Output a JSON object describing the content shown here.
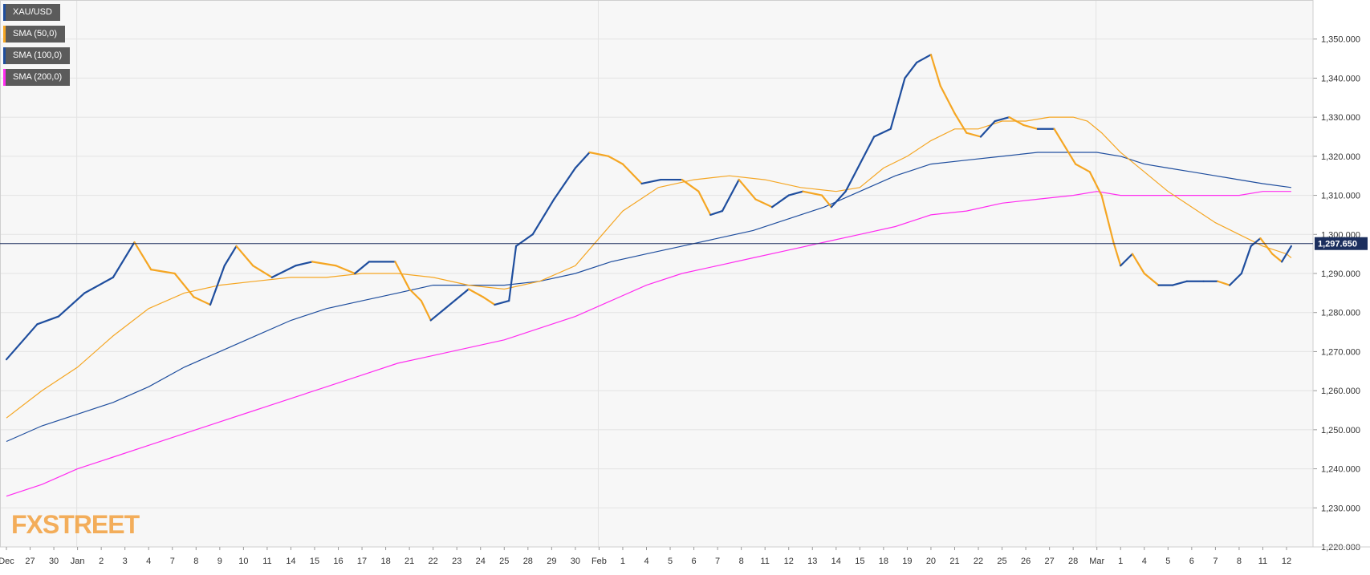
{
  "legend": [
    {
      "label": "XAU/USD",
      "color": "#1f4e9e"
    },
    {
      "label": "SMA (50,0)",
      "color": "#f5a623"
    },
    {
      "label": "SMA (100,0)",
      "color": "#1f4e9e"
    },
    {
      "label": "SMA (200,0)",
      "color": "#ff2cf0"
    }
  ],
  "logo": {
    "part1": "FX",
    "part2": "STREET"
  },
  "colors": {
    "up": "#1f4e9e",
    "down": "#f5a623",
    "sma50": "#f5a623",
    "sma100": "#1f4e9e",
    "sma200": "#ff2cf0",
    "price_line": "#1c2f5e",
    "grid": "#e3e3e3",
    "plot_bg": "#f7f7f7"
  },
  "chart_data": {
    "type": "candlestick",
    "symbol": "XAU/USD",
    "ylim": [
      1220,
      1360
    ],
    "yticks": [
      1220,
      1230,
      1240,
      1250,
      1260,
      1270,
      1280,
      1290,
      1300,
      1310,
      1320,
      1330,
      1340,
      1350
    ],
    "ytick_labels": [
      "1,220.000",
      "1,230.000",
      "1,240.000",
      "1,250.000",
      "1,260.000",
      "1,270.000",
      "1,280.000",
      "1,290.000",
      "1,300.000",
      "1,310.000",
      "1,320.000",
      "1,330.000",
      "1,340.000",
      "1,350.000"
    ],
    "x_ticks": [
      "Dec",
      "27",
      "30",
      "Jan",
      "2",
      "3",
      "4",
      "7",
      "8",
      "9",
      "10",
      "11",
      "14",
      "15",
      "16",
      "17",
      "18",
      "21",
      "22",
      "23",
      "24",
      "25",
      "28",
      "29",
      "30",
      "Feb",
      "1",
      "4",
      "5",
      "6",
      "7",
      "8",
      "11",
      "12",
      "13",
      "14",
      "15",
      "18",
      "19",
      "20",
      "21",
      "22",
      "25",
      "26",
      "27",
      "28",
      "Mar",
      "1",
      "4",
      "5",
      "6",
      "7",
      "8",
      "11",
      "12"
    ],
    "x_tick_index": [
      0,
      1,
      2,
      3,
      4,
      5,
      6,
      7,
      8,
      9,
      10,
      11,
      12,
      13,
      14,
      15,
      16,
      17,
      18,
      19,
      20,
      21,
      22,
      23,
      24,
      25,
      26,
      27,
      28,
      29,
      30,
      31,
      32,
      33,
      34,
      35,
      36,
      37,
      38,
      39,
      40,
      41,
      42,
      43,
      44,
      45,
      46,
      47,
      48,
      49,
      50,
      51,
      52,
      53,
      54
    ],
    "month_separators": [
      3,
      25,
      46
    ],
    "last_price": 1297.65,
    "last_price_label": "1,297.650",
    "close_trend": [
      [
        0,
        1268
      ],
      [
        1.3,
        1277
      ],
      [
        2.2,
        1279
      ],
      [
        3.3,
        1285
      ],
      [
        4.5,
        1289
      ],
      [
        5.4,
        1298
      ],
      [
        6.1,
        1291
      ],
      [
        7.1,
        1290
      ],
      [
        7.9,
        1284
      ],
      [
        8.6,
        1282
      ],
      [
        9.2,
        1292
      ],
      [
        9.7,
        1297
      ],
      [
        10.4,
        1292
      ],
      [
        11.2,
        1289
      ],
      [
        12.2,
        1292
      ],
      [
        12.9,
        1293
      ],
      [
        13.9,
        1292
      ],
      [
        14.7,
        1290
      ],
      [
        15.3,
        1293
      ],
      [
        16.4,
        1293
      ],
      [
        17.0,
        1286
      ],
      [
        17.5,
        1283
      ],
      [
        17.9,
        1278
      ],
      [
        18.5,
        1281
      ],
      [
        19.5,
        1286
      ],
      [
        20.1,
        1284
      ],
      [
        20.6,
        1282
      ],
      [
        21.2,
        1283
      ],
      [
        21.5,
        1297
      ],
      [
        22.2,
        1300
      ],
      [
        23.1,
        1309
      ],
      [
        24.0,
        1317
      ],
      [
        24.6,
        1321
      ],
      [
        25.4,
        1320
      ],
      [
        26.0,
        1318
      ],
      [
        26.8,
        1313
      ],
      [
        27.6,
        1314
      ],
      [
        28.5,
        1314
      ],
      [
        29.2,
        1311
      ],
      [
        29.7,
        1305
      ],
      [
        30.2,
        1306
      ],
      [
        30.9,
        1314
      ],
      [
        31.6,
        1309
      ],
      [
        32.3,
        1307
      ],
      [
        33.0,
        1310
      ],
      [
        33.6,
        1311
      ],
      [
        34.4,
        1310
      ],
      [
        34.8,
        1307
      ],
      [
        35.4,
        1311
      ],
      [
        36.0,
        1318
      ],
      [
        36.6,
        1325
      ],
      [
        37.3,
        1327
      ],
      [
        37.9,
        1340
      ],
      [
        38.4,
        1344
      ],
      [
        39.0,
        1346
      ],
      [
        39.4,
        1338
      ],
      [
        40.0,
        1331
      ],
      [
        40.5,
        1326
      ],
      [
        41.1,
        1325
      ],
      [
        41.7,
        1329
      ],
      [
        42.3,
        1330
      ],
      [
        42.9,
        1328
      ],
      [
        43.5,
        1327
      ],
      [
        44.2,
        1327
      ],
      [
        44.7,
        1322
      ],
      [
        45.1,
        1318
      ],
      [
        45.7,
        1316
      ],
      [
        46.2,
        1310
      ],
      [
        46.7,
        1298
      ],
      [
        47.0,
        1292
      ],
      [
        47.5,
        1295
      ],
      [
        48.0,
        1290
      ],
      [
        48.6,
        1287
      ],
      [
        49.2,
        1287
      ],
      [
        49.8,
        1288
      ],
      [
        50.5,
        1288
      ],
      [
        51.1,
        1288
      ],
      [
        51.6,
        1287
      ],
      [
        52.1,
        1290
      ],
      [
        52.5,
        1297
      ],
      [
        52.9,
        1299
      ],
      [
        53.4,
        1295
      ],
      [
        53.8,
        1293
      ],
      [
        54.2,
        1297
      ]
    ],
    "sma50": [
      [
        0,
        1253
      ],
      [
        1.5,
        1260
      ],
      [
        3.0,
        1266
      ],
      [
        4.5,
        1274
      ],
      [
        6.0,
        1281
      ],
      [
        7.5,
        1285
      ],
      [
        9.0,
        1287
      ],
      [
        10.5,
        1288
      ],
      [
        12.0,
        1289
      ],
      [
        13.5,
        1289
      ],
      [
        15.0,
        1290
      ],
      [
        16.5,
        1290
      ],
      [
        18.0,
        1289
      ],
      [
        19.5,
        1287
      ],
      [
        21.0,
        1286
      ],
      [
        22.5,
        1288
      ],
      [
        24.0,
        1292
      ],
      [
        25.0,
        1299
      ],
      [
        26.0,
        1306
      ],
      [
        27.5,
        1312
      ],
      [
        29.0,
        1314
      ],
      [
        30.5,
        1315
      ],
      [
        32.0,
        1314
      ],
      [
        33.5,
        1312
      ],
      [
        35.0,
        1311
      ],
      [
        36.0,
        1312
      ],
      [
        37.0,
        1317
      ],
      [
        38.0,
        1320
      ],
      [
        39.0,
        1324
      ],
      [
        40.0,
        1327
      ],
      [
        41.0,
        1327
      ],
      [
        42.0,
        1329
      ],
      [
        43.0,
        1329
      ],
      [
        44.0,
        1330
      ],
      [
        45.0,
        1330
      ],
      [
        45.6,
        1329
      ],
      [
        46.2,
        1326
      ],
      [
        47.0,
        1321
      ],
      [
        48.0,
        1316
      ],
      [
        49.0,
        1311
      ],
      [
        50.0,
        1307
      ],
      [
        51.0,
        1303
      ],
      [
        52.0,
        1300
      ],
      [
        53.0,
        1297
      ],
      [
        54.0,
        1295
      ],
      [
        54.2,
        1294
      ]
    ],
    "sma100": [
      [
        0,
        1247
      ],
      [
        1.5,
        1251
      ],
      [
        3.0,
        1254
      ],
      [
        4.5,
        1257
      ],
      [
        6.0,
        1261
      ],
      [
        7.5,
        1266
      ],
      [
        9.0,
        1270
      ],
      [
        10.5,
        1274
      ],
      [
        12.0,
        1278
      ],
      [
        13.5,
        1281
      ],
      [
        15.0,
        1283
      ],
      [
        16.5,
        1285
      ],
      [
        18.0,
        1287
      ],
      [
        19.5,
        1287
      ],
      [
        21.0,
        1287
      ],
      [
        22.5,
        1288
      ],
      [
        24.0,
        1290
      ],
      [
        25.5,
        1293
      ],
      [
        27.0,
        1295
      ],
      [
        28.5,
        1297
      ],
      [
        30.0,
        1299
      ],
      [
        31.5,
        1301
      ],
      [
        33.0,
        1304
      ],
      [
        34.5,
        1307
      ],
      [
        36.0,
        1311
      ],
      [
        37.5,
        1315
      ],
      [
        39.0,
        1318
      ],
      [
        40.5,
        1319
      ],
      [
        42.0,
        1320
      ],
      [
        43.5,
        1321
      ],
      [
        45.0,
        1321
      ],
      [
        46.0,
        1321
      ],
      [
        47.0,
        1320
      ],
      [
        48.0,
        1318
      ],
      [
        49.0,
        1317
      ],
      [
        50.0,
        1316
      ],
      [
        51.0,
        1315
      ],
      [
        52.0,
        1314
      ],
      [
        53.0,
        1313
      ],
      [
        54.2,
        1312
      ]
    ],
    "sma200": [
      [
        0,
        1233
      ],
      [
        1.5,
        1236
      ],
      [
        3.0,
        1240
      ],
      [
        4.5,
        1243
      ],
      [
        6.0,
        1246
      ],
      [
        7.5,
        1249
      ],
      [
        9.0,
        1252
      ],
      [
        10.5,
        1255
      ],
      [
        12.0,
        1258
      ],
      [
        13.5,
        1261
      ],
      [
        15.0,
        1264
      ],
      [
        16.5,
        1267
      ],
      [
        18.0,
        1269
      ],
      [
        19.5,
        1271
      ],
      [
        21.0,
        1273
      ],
      [
        22.5,
        1276
      ],
      [
        24.0,
        1279
      ],
      [
        25.5,
        1283
      ],
      [
        27.0,
        1287
      ],
      [
        28.5,
        1290
      ],
      [
        30.0,
        1292
      ],
      [
        31.5,
        1294
      ],
      [
        33.0,
        1296
      ],
      [
        34.5,
        1298
      ],
      [
        36.0,
        1300
      ],
      [
        37.5,
        1302
      ],
      [
        39.0,
        1305
      ],
      [
        40.5,
        1306
      ],
      [
        42.0,
        1308
      ],
      [
        43.5,
        1309
      ],
      [
        45.0,
        1310
      ],
      [
        46.0,
        1311
      ],
      [
        47.0,
        1310
      ],
      [
        48.0,
        1310
      ],
      [
        49.0,
        1310
      ],
      [
        50.0,
        1310
      ],
      [
        51.0,
        1310
      ],
      [
        52.0,
        1310
      ],
      [
        53.0,
        1311
      ],
      [
        54.2,
        1311
      ]
    ]
  }
}
